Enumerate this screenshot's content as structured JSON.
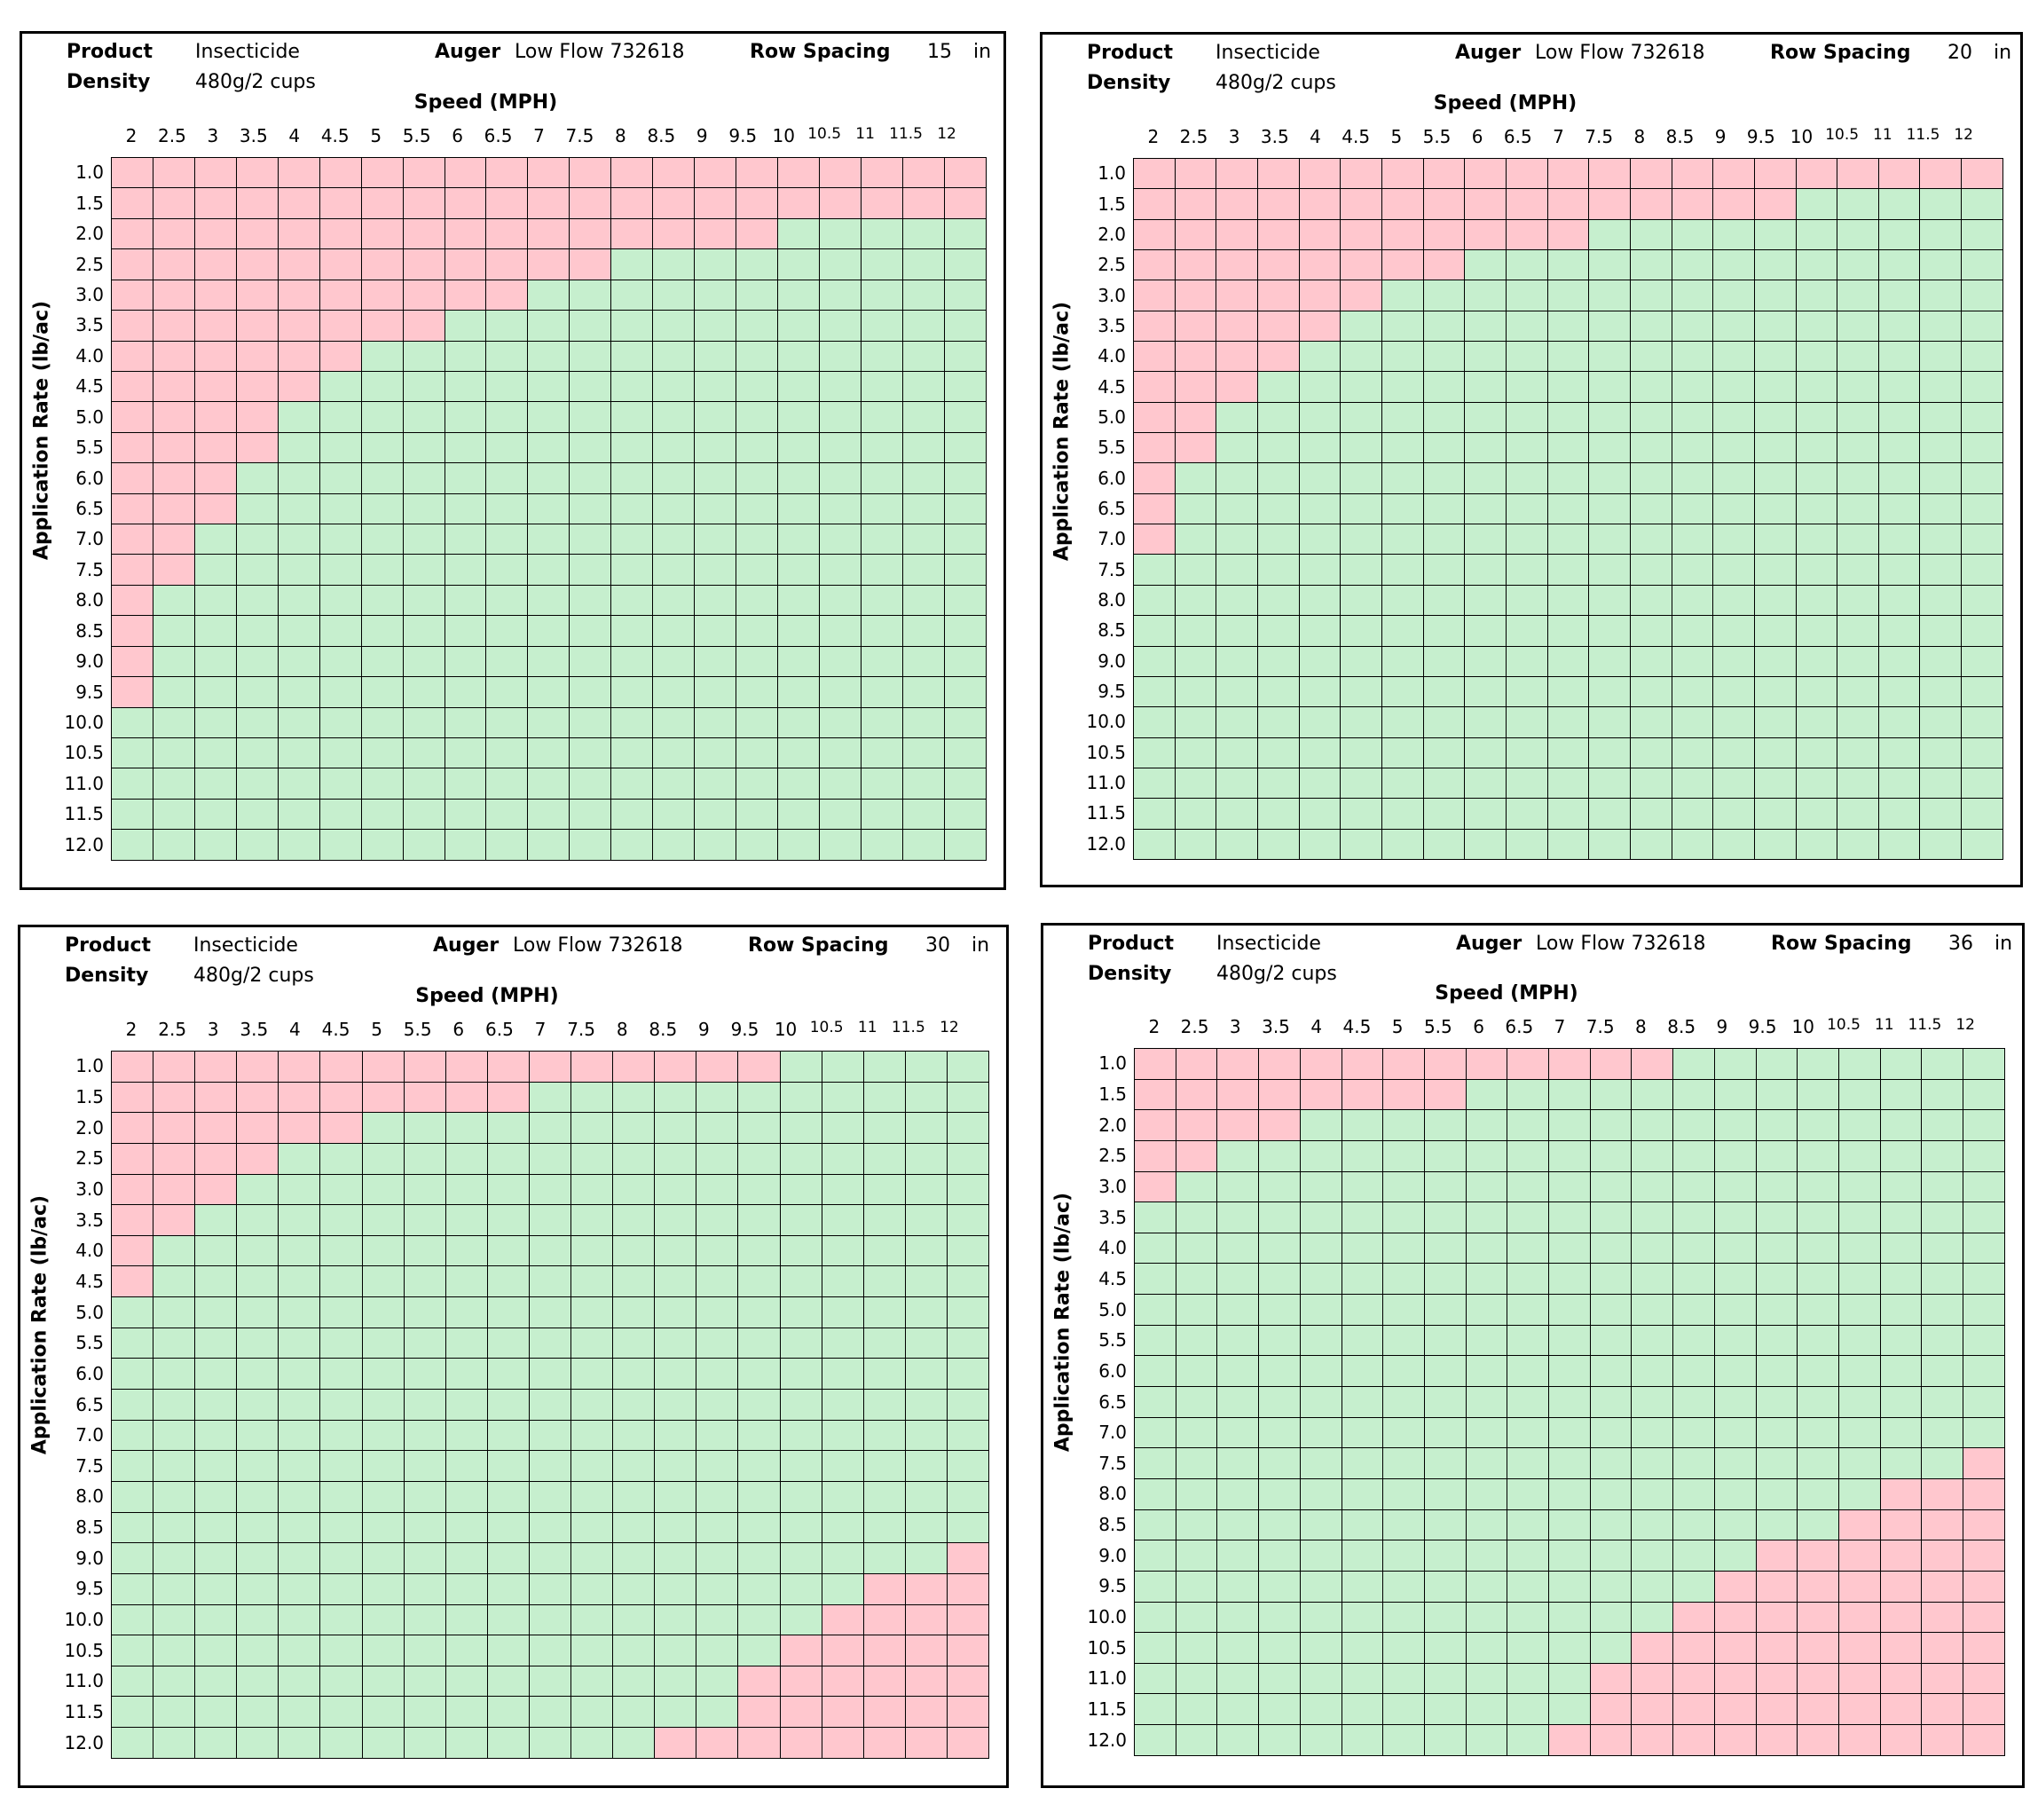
{
  "colors": {
    "in_range": "#c6efce",
    "out_of_range": "#ffc7ce",
    "grid_line": "#000000"
  },
  "chart_data": [
    {
      "type": "heatmap",
      "header": {
        "product_label": "Product",
        "product": "Insecticide",
        "auger_label": "Auger",
        "auger": "Low Flow 732618",
        "row_spacing_label": "Row Spacing",
        "row_spacing": "15",
        "row_spacing_unit": "in",
        "density_label": "Density",
        "density": "480g/2 cups"
      },
      "xlabel": "Speed (MPH)",
      "ylabel": "Application Rate (lb/ac)",
      "x": [
        "2",
        "2.5",
        "3",
        "3.5",
        "4",
        "4.5",
        "5",
        "5.5",
        "6",
        "6.5",
        "7",
        "7.5",
        "8",
        "8.5",
        "9",
        "9.5",
        "10",
        "10.5",
        "11",
        "11.5",
        "12"
      ],
      "y": [
        "1.0",
        "1.5",
        "2.0",
        "2.5",
        "3.0",
        "3.5",
        "4.0",
        "4.5",
        "5.0",
        "5.5",
        "6.0",
        "6.5",
        "7.0",
        "7.5",
        "8.0",
        "8.5",
        "9.0",
        "9.5",
        "10.0",
        "10.5",
        "11.0",
        "11.5",
        "12.0"
      ],
      "red_cells_per_row": [
        21,
        21,
        16,
        12,
        10,
        8,
        6,
        5,
        4,
        4,
        3,
        3,
        2,
        2,
        1,
        1,
        1,
        1,
        0,
        0,
        0,
        0,
        0
      ],
      "red_side": "left"
    },
    {
      "type": "heatmap",
      "header": {
        "product_label": "Product",
        "product": "Insecticide",
        "auger_label": "Auger",
        "auger": "Low Flow 732618",
        "row_spacing_label": "Row Spacing",
        "row_spacing": "20",
        "row_spacing_unit": "in",
        "density_label": "Density",
        "density": "480g/2 cups"
      },
      "xlabel": "Speed (MPH)",
      "ylabel": "Application Rate (lb/ac)",
      "x": [
        "2",
        "2.5",
        "3",
        "3.5",
        "4",
        "4.5",
        "5",
        "5.5",
        "6",
        "6.5",
        "7",
        "7.5",
        "8",
        "8.5",
        "9",
        "9.5",
        "10",
        "10.5",
        "11",
        "11.5",
        "12"
      ],
      "y": [
        "1.0",
        "1.5",
        "2.0",
        "2.5",
        "3.0",
        "3.5",
        "4.0",
        "4.5",
        "5.0",
        "5.5",
        "6.0",
        "6.5",
        "7.0",
        "7.5",
        "8.0",
        "8.5",
        "9.0",
        "9.5",
        "10.0",
        "10.5",
        "11.0",
        "11.5",
        "12.0"
      ],
      "red_cells_per_row": [
        21,
        16,
        11,
        8,
        6,
        5,
        4,
        3,
        2,
        2,
        1,
        1,
        1,
        0,
        0,
        0,
        0,
        0,
        0,
        0,
        0,
        0,
        0
      ],
      "red_side": "left"
    },
    {
      "type": "heatmap",
      "header": {
        "product_label": "Product",
        "product": "Insecticide",
        "auger_label": "Auger",
        "auger": "Low Flow 732618",
        "row_spacing_label": "Row Spacing",
        "row_spacing": "30",
        "row_spacing_unit": "in",
        "density_label": "Density",
        "density": "480g/2 cups"
      },
      "xlabel": "Speed (MPH)",
      "ylabel": "Application Rate (lb/ac)",
      "x": [
        "2",
        "2.5",
        "3",
        "3.5",
        "4",
        "4.5",
        "5",
        "5.5",
        "6",
        "6.5",
        "7",
        "7.5",
        "8",
        "8.5",
        "9",
        "9.5",
        "10",
        "10.5",
        "11",
        "11.5",
        "12"
      ],
      "y": [
        "1.0",
        "1.5",
        "2.0",
        "2.5",
        "3.0",
        "3.5",
        "4.0",
        "4.5",
        "5.0",
        "5.5",
        "6.0",
        "6.5",
        "7.0",
        "7.5",
        "8.0",
        "8.5",
        "9.0",
        "9.5",
        "10.0",
        "10.5",
        "11.0",
        "11.5",
        "12.0"
      ],
      "red_cells_per_row": [
        16,
        10,
        6,
        4,
        3,
        2,
        1,
        1,
        0,
        0,
        0,
        0,
        0,
        0,
        0,
        0,
        0,
        0,
        0,
        0,
        0,
        0,
        0
      ],
      "red_cells_right_per_row": [
        0,
        0,
        0,
        0,
        0,
        0,
        0,
        0,
        0,
        0,
        0,
        0,
        0,
        0,
        0,
        0,
        1,
        3,
        4,
        5,
        6,
        6,
        8
      ],
      "red_side": "both"
    },
    {
      "type": "heatmap",
      "header": {
        "product_label": "Product",
        "product": "Insecticide",
        "auger_label": "Auger",
        "auger": "Low Flow 732618",
        "row_spacing_label": "Row Spacing",
        "row_spacing": "36",
        "row_spacing_unit": "in",
        "density_label": "Density",
        "density": "480g/2 cups"
      },
      "xlabel": "Speed (MPH)",
      "ylabel": "Application Rate (lb/ac)",
      "x": [
        "2",
        "2.5",
        "3",
        "3.5",
        "4",
        "4.5",
        "5",
        "5.5",
        "6",
        "6.5",
        "7",
        "7.5",
        "8",
        "8.5",
        "9",
        "9.5",
        "10",
        "10.5",
        "11",
        "11.5",
        "12"
      ],
      "y": [
        "1.0",
        "1.5",
        "2.0",
        "2.5",
        "3.0",
        "3.5",
        "4.0",
        "4.5",
        "5.0",
        "5.5",
        "6.0",
        "6.5",
        "7.0",
        "7.5",
        "8.0",
        "8.5",
        "9.0",
        "9.5",
        "10.0",
        "10.5",
        "11.0",
        "11.5",
        "12.0"
      ],
      "red_cells_per_row": [
        13,
        8,
        4,
        2,
        1,
        0,
        0,
        0,
        0,
        0,
        0,
        0,
        0,
        0,
        0,
        0,
        0,
        0,
        0,
        0,
        0,
        0,
        0
      ],
      "red_cells_right_per_row": [
        0,
        0,
        0,
        0,
        0,
        0,
        0,
        0,
        0,
        0,
        0,
        0,
        0,
        1,
        3,
        4,
        6,
        7,
        8,
        9,
        10,
        10,
        11
      ],
      "red_side": "both"
    }
  ]
}
